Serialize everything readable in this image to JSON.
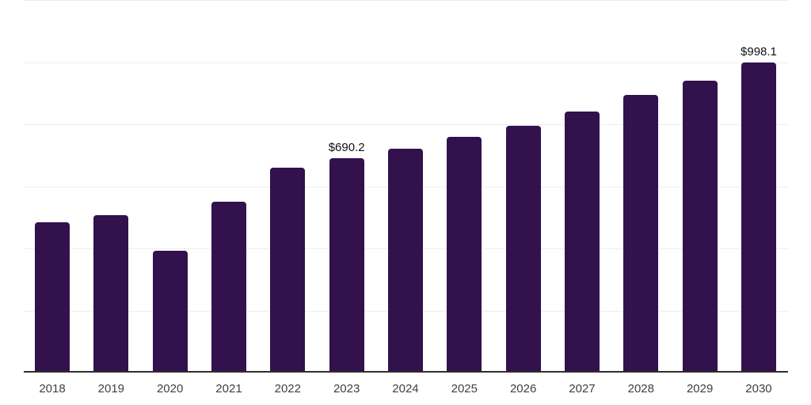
{
  "chart": {
    "background_color": "#ffffff",
    "bar_color": "#32114d",
    "axis_color": "#2e2e2e",
    "gridline_color": "#eeeeee",
    "tick_label_color": "#3f3f3f",
    "data_label_color": "#111111"
  },
  "chart_data": {
    "type": "bar",
    "categories": [
      "2018",
      "2019",
      "2020",
      "2021",
      "2022",
      "2023",
      "2024",
      "2025",
      "2026",
      "2027",
      "2028",
      "2029",
      "2030"
    ],
    "values": [
      485,
      507,
      393,
      551,
      660,
      690.2,
      722,
      760,
      796,
      840,
      894,
      940,
      998.1
    ],
    "annotations": [
      {
        "category": "2023",
        "text": "$690.2"
      },
      {
        "category": "2030",
        "text": "$998.1"
      }
    ],
    "value_prefix": "$",
    "ylim": [
      0,
      1200
    ],
    "ytick_interval": 200,
    "grid": true,
    "legend": false,
    "y_axis_labels_visible": false
  }
}
